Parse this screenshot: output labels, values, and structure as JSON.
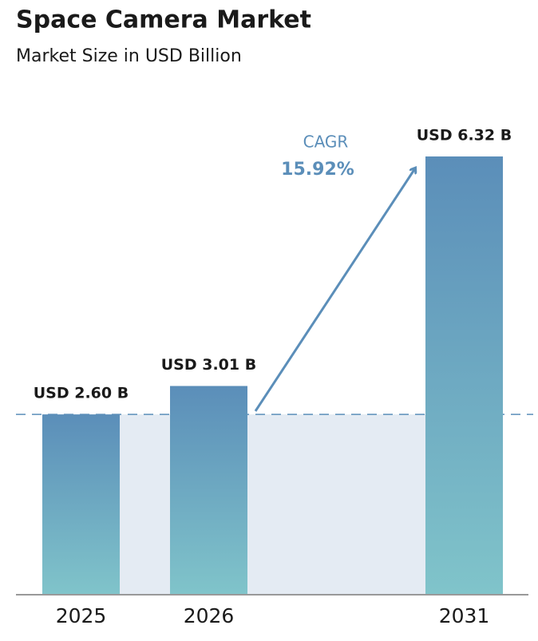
{
  "chart_data": {
    "type": "bar",
    "title": "Space Camera Market",
    "subtitle": "Market Size in USD Billion",
    "categories": [
      "2025",
      "2026",
      "2031"
    ],
    "values": [
      2.6,
      3.01,
      6.32
    ],
    "value_labels": [
      "USD 2.60 B",
      "USD 3.01 B",
      "USD 6.32 B"
    ],
    "colors": [
      "#5b8eb9",
      "#80c4ca"
    ],
    "annotation": {
      "label": "CAGR",
      "text": "15.92%"
    }
  }
}
